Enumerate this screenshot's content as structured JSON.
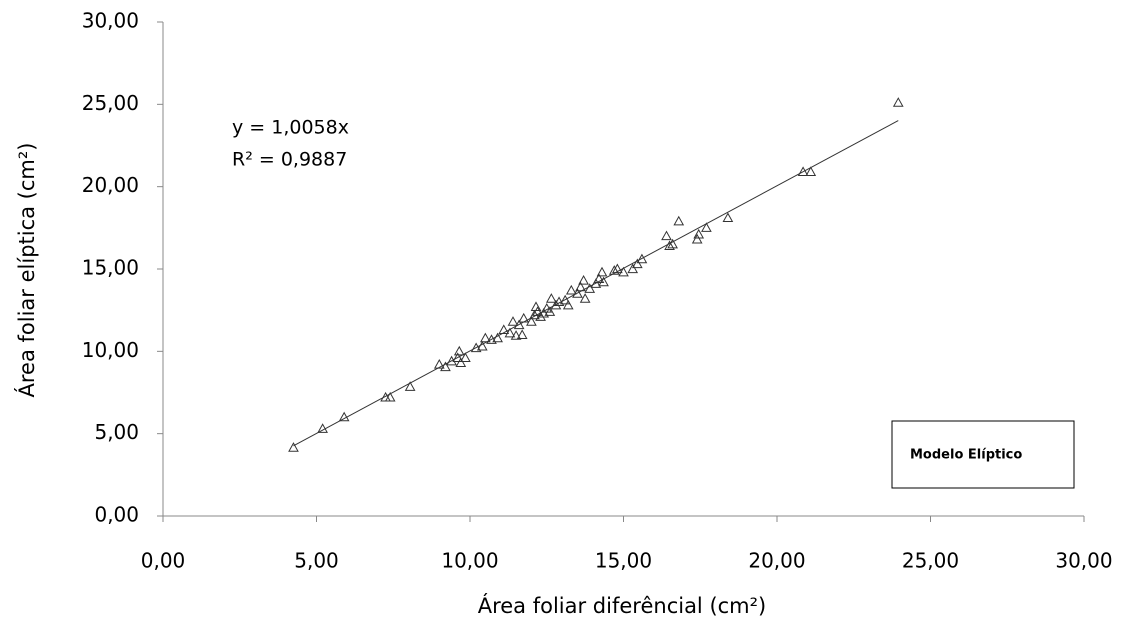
{
  "chart_data": {
    "type": "scatter",
    "xlabel": "Área foliar diferêncial (cm²)",
    "ylabel": "Área foliar elíptica (cm²)",
    "annotations": [
      "y = 1,0058x",
      "R² = 0,9887"
    ],
    "legend": "lower right",
    "xlim": [
      0,
      30
    ],
    "ylim": [
      0,
      30
    ],
    "xticks": [
      {
        "value": 0,
        "label": "0,00"
      },
      {
        "value": 5,
        "label": "5,00"
      },
      {
        "value": 10,
        "label": "10,00"
      },
      {
        "value": 15,
        "label": "15,00"
      },
      {
        "value": 20,
        "label": "20,00"
      },
      {
        "value": 25,
        "label": "25,00"
      },
      {
        "value": 30,
        "label": "30,00"
      }
    ],
    "yticks": [
      {
        "value": 0,
        "label": "0,00"
      },
      {
        "value": 5,
        "label": "5,00"
      },
      {
        "value": 10,
        "label": "10,00"
      },
      {
        "value": 15,
        "label": "15,00"
      },
      {
        "value": 20,
        "label": "20,00"
      },
      {
        "value": 25,
        "label": "25,00"
      },
      {
        "value": 30,
        "label": "30,00"
      }
    ],
    "series": [
      {
        "name": "Modelo Elíptico",
        "color": "#333333",
        "x": [
          4.25,
          5.2,
          5.9,
          7.25,
          7.4,
          8.05,
          9.0,
          9.2,
          9.4,
          9.6,
          9.65,
          9.7,
          9.85,
          10.2,
          10.4,
          10.5,
          10.7,
          10.9,
          11.1,
          11.3,
          11.4,
          11.5,
          11.6,
          11.7,
          11.75,
          12.0,
          12.1,
          12.15,
          12.2,
          12.3,
          12.4,
          12.5,
          12.6,
          12.65,
          12.8,
          12.9,
          13.1,
          13.2,
          13.3,
          13.5,
          13.6,
          13.7,
          13.75,
          13.9,
          14.1,
          14.2,
          14.3,
          14.35,
          14.7,
          14.8,
          15.0,
          15.3,
          15.45,
          15.6,
          16.4,
          16.5,
          16.6,
          16.8,
          17.4,
          17.45,
          17.7,
          18.4,
          20.85,
          21.1,
          23.95
        ],
        "values": [
          4.15,
          5.3,
          6.0,
          7.2,
          7.2,
          7.85,
          9.2,
          9.05,
          9.4,
          9.6,
          10.0,
          9.3,
          9.6,
          10.2,
          10.3,
          10.8,
          10.7,
          10.8,
          11.3,
          11.1,
          11.8,
          10.95,
          11.6,
          11.0,
          12.0,
          11.8,
          12.2,
          12.7,
          12.4,
          12.1,
          12.3,
          12.6,
          12.4,
          13.2,
          12.8,
          13.0,
          13.1,
          12.8,
          13.7,
          13.5,
          13.9,
          14.3,
          13.2,
          13.8,
          14.1,
          14.4,
          14.8,
          14.2,
          14.9,
          15.0,
          14.8,
          15.0,
          15.3,
          15.6,
          17.0,
          16.4,
          16.5,
          17.9,
          16.8,
          17.1,
          17.5,
          18.1,
          20.9,
          20.9,
          25.1
        ]
      }
    ]
  }
}
